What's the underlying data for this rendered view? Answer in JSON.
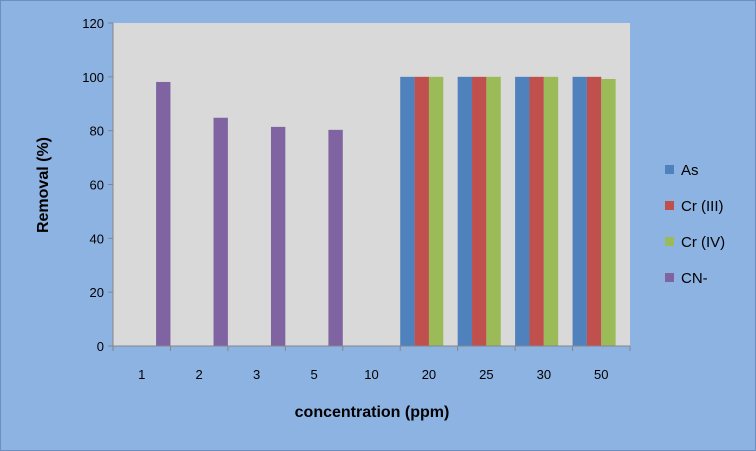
{
  "chart_data": {
    "type": "bar",
    "title": "",
    "xlabel": "concentration (ppm)",
    "ylabel": "Removal (%)",
    "ylim": [
      0,
      120
    ],
    "yticks": [
      0,
      20,
      40,
      60,
      80,
      100,
      120
    ],
    "grid": false,
    "legend_position": "right",
    "categories": [
      "1",
      "2",
      "3",
      "5",
      "10",
      "20",
      "25",
      "30",
      "50"
    ],
    "series": [
      {
        "name": "As",
        "color": "#4f81bd",
        "values": [
          null,
          null,
          null,
          null,
          null,
          100,
          100,
          100,
          100
        ]
      },
      {
        "name": "Cr (III)",
        "color": "#c0504d",
        "values": [
          null,
          null,
          null,
          null,
          null,
          100,
          100,
          100,
          100
        ]
      },
      {
        "name": "Cr (IV)",
        "color": "#9bbb59",
        "values": [
          null,
          null,
          null,
          null,
          null,
          100,
          100,
          100,
          99.2
        ]
      },
      {
        "name": "CN-",
        "color": "#8064a2",
        "values": [
          98.1,
          84.8,
          81.4,
          80.3,
          null,
          null,
          null,
          null,
          null
        ]
      }
    ]
  },
  "colors": {
    "background": "#8db3e2",
    "plot_area": "#d9d9d9"
  }
}
